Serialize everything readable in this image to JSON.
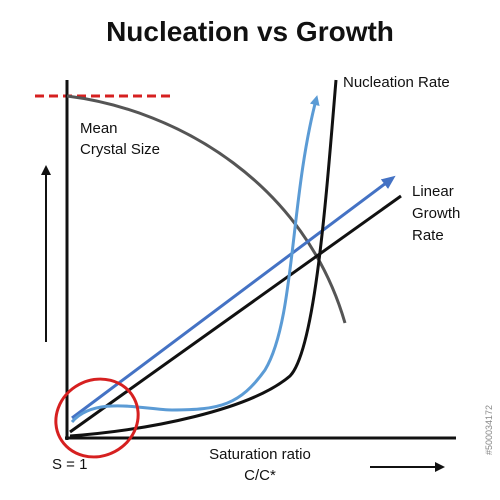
{
  "title": "Nucleation vs Growth",
  "labels": {
    "mean_crystal_size": [
      "Mean",
      "Crystal Size"
    ],
    "nucleation_rate": "Nucleation Rate",
    "linear_growth_rate": [
      "Linear",
      "Growth",
      "Rate"
    ],
    "x_axis": [
      "Saturation ratio",
      "C/C*"
    ],
    "s_equals_one": "S = 1"
  },
  "watermark_id": "#500034172",
  "colors": {
    "axis": "#111111",
    "mean_size_curve": "#555555",
    "nucleation_curve": "#111111",
    "blue_curve": "#5b9bd5",
    "growth_arrow": "#4472c4",
    "growth_line": "#111111",
    "dashed_line": "#d62020",
    "highlight_circle": "#d62020"
  }
}
